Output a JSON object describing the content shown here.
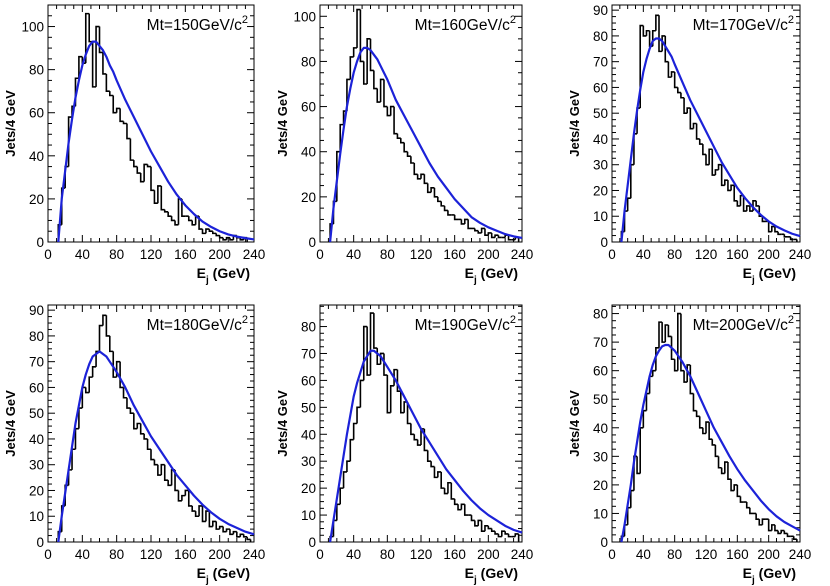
{
  "chart_data": [
    {
      "type": "bar",
      "title": "Mt=150GeV/c",
      "title_sup": "2",
      "xlabel": "E",
      "xlabel_sub": "j",
      "xlabel_unit": " (GeV)",
      "ylabel": "Jets/4 GeV",
      "xlim": [
        0,
        240
      ],
      "ylim": [
        0,
        110
      ],
      "xticks": [
        "0",
        "40",
        "80",
        "120",
        "160",
        "200",
        "240"
      ],
      "yticks": [
        "0",
        "20",
        "40",
        "60",
        "80",
        "100"
      ],
      "hist_x": [
        12,
        16,
        20,
        24,
        28,
        32,
        36,
        40,
        44,
        48,
        52,
        56,
        60,
        64,
        68,
        72,
        76,
        80,
        84,
        88,
        92,
        96,
        100,
        104,
        108,
        112,
        116,
        120,
        124,
        128,
        132,
        136,
        140,
        144,
        148,
        152,
        156,
        160,
        164,
        168,
        172,
        176,
        180,
        184,
        188,
        192,
        196,
        200,
        204,
        208,
        212,
        216,
        220,
        224,
        228
      ],
      "hist_y": [
        8,
        25,
        35,
        58,
        63,
        76,
        86,
        83,
        106,
        93,
        72,
        100,
        88,
        78,
        70,
        68,
        60,
        62,
        56,
        55,
        48,
        38,
        35,
        32,
        28,
        36,
        35,
        24,
        18,
        26,
        15,
        14,
        12,
        10,
        8,
        20,
        12,
        12,
        10,
        8,
        12,
        6,
        4,
        6,
        5,
        4,
        3,
        2,
        1,
        2,
        1,
        3,
        2,
        1,
        2
      ],
      "fit_x": [
        12,
        16,
        20,
        24,
        28,
        32,
        36,
        40,
        44,
        48,
        52,
        56,
        60,
        64,
        68,
        72,
        76,
        80,
        90,
        100,
        110,
        120,
        130,
        140,
        150,
        160,
        170,
        180,
        190,
        200,
        210,
        220,
        230,
        240
      ],
      "fit_y": [
        0,
        20,
        33,
        46,
        57,
        67,
        75,
        82,
        87,
        91,
        93,
        93,
        91,
        89,
        86,
        82,
        79,
        75,
        66,
        58,
        50,
        42,
        35,
        28,
        22,
        17,
        13,
        9.5,
        7,
        5,
        3.5,
        2.5,
        1.8,
        1.2
      ]
    },
    {
      "type": "bar",
      "title": "Mt=160GeV/c",
      "title_sup": "2",
      "xlabel": "E",
      "xlabel_sub": "j",
      "xlabel_unit": " (GeV)",
      "ylabel": "Jets/4 GeV",
      "xlim": [
        0,
        240
      ],
      "ylim": [
        0,
        105
      ],
      "xticks": [
        "0",
        "40",
        "80",
        "120",
        "160",
        "200",
        "240"
      ],
      "yticks": [
        "0",
        "20",
        "40",
        "60",
        "80",
        "100"
      ],
      "hist_x": [
        12,
        16,
        20,
        24,
        28,
        32,
        36,
        40,
        44,
        48,
        52,
        56,
        60,
        64,
        68,
        72,
        76,
        80,
        84,
        88,
        92,
        96,
        100,
        104,
        108,
        112,
        116,
        120,
        124,
        128,
        132,
        136,
        140,
        144,
        148,
        152,
        156,
        160,
        164,
        168,
        172,
        176,
        180,
        184,
        188,
        192,
        196,
        200,
        204,
        208,
        212,
        216,
        220,
        224,
        228,
        232
      ],
      "hist_y": [
        8,
        18,
        40,
        52,
        58,
        72,
        82,
        86,
        103,
        80,
        70,
        90,
        76,
        68,
        62,
        72,
        60,
        56,
        60,
        48,
        46,
        44,
        40,
        38,
        35,
        30,
        28,
        30,
        26,
        22,
        24,
        20,
        18,
        16,
        14,
        12,
        12,
        10,
        10,
        8,
        10,
        6,
        6,
        5,
        4,
        6,
        3,
        4,
        2,
        3,
        2,
        2,
        3,
        1,
        1,
        2
      ],
      "fit_x": [
        12,
        16,
        20,
        24,
        28,
        32,
        36,
        40,
        44,
        48,
        52,
        56,
        60,
        64,
        68,
        72,
        76,
        80,
        90,
        100,
        110,
        120,
        130,
        140,
        150,
        160,
        170,
        180,
        190,
        200,
        210,
        220,
        230,
        240
      ],
      "fit_y": [
        0,
        15,
        27,
        39,
        50,
        60,
        68,
        75,
        80,
        84,
        86,
        86,
        85,
        83,
        81,
        78,
        75,
        72,
        63,
        56,
        49,
        42,
        35,
        29,
        24,
        19,
        15,
        11,
        8.5,
        6.5,
        5,
        3.5,
        2.5,
        1.8
      ]
    },
    {
      "type": "bar",
      "title": "Mt=170GeV/c",
      "title_sup": "2",
      "xlabel": "E",
      "xlabel_sub": "j",
      "xlabel_unit": " (GeV)",
      "ylabel": "Jets/4 GeV",
      "xlim": [
        0,
        240
      ],
      "ylim": [
        0,
        92
      ],
      "xticks": [
        "0",
        "40",
        "80",
        "120",
        "160",
        "200",
        "240"
      ],
      "yticks": [
        "0",
        "10",
        "20",
        "30",
        "40",
        "50",
        "60",
        "70",
        "80",
        "90"
      ],
      "hist_x": [
        12,
        16,
        20,
        24,
        28,
        32,
        36,
        40,
        44,
        48,
        52,
        56,
        60,
        64,
        68,
        72,
        76,
        80,
        84,
        88,
        92,
        96,
        100,
        104,
        108,
        112,
        116,
        120,
        124,
        128,
        132,
        136,
        140,
        144,
        148,
        152,
        156,
        160,
        164,
        168,
        172,
        176,
        180,
        184,
        188,
        192,
        196,
        200,
        204,
        208,
        212,
        216,
        220,
        224,
        228,
        232
      ],
      "hist_y": [
        4,
        12,
        17,
        30,
        42,
        52,
        84,
        80,
        82,
        76,
        82,
        88,
        74,
        80,
        70,
        64,
        66,
        60,
        58,
        56,
        50,
        52,
        44,
        46,
        40,
        38,
        34,
        30,
        36,
        26,
        28,
        30,
        22,
        24,
        20,
        22,
        16,
        14,
        18,
        12,
        14,
        12,
        16,
        14,
        10,
        8,
        8,
        4,
        6,
        4,
        3,
        3,
        2,
        2,
        1,
        1
      ],
      "fit_x": [
        12,
        16,
        20,
        24,
        28,
        32,
        36,
        40,
        44,
        48,
        52,
        56,
        60,
        64,
        68,
        72,
        76,
        80,
        90,
        100,
        110,
        120,
        130,
        140,
        150,
        160,
        170,
        180,
        190,
        200,
        210,
        220,
        230,
        240
      ],
      "fit_y": [
        0,
        12,
        22,
        32,
        42,
        51,
        59,
        66,
        71,
        75,
        78,
        79,
        79,
        78,
        76,
        74,
        72,
        69,
        62,
        55,
        49,
        43,
        37,
        31,
        26,
        21,
        17,
        13.5,
        10.5,
        8,
        6,
        4.5,
        3.2,
        2.3
      ]
    },
    {
      "type": "bar",
      "title": "Mt=180GeV/c",
      "title_sup": "2",
      "xlabel": "E",
      "xlabel_sub": "j",
      "xlabel_unit": " (GeV)",
      "ylabel": "Jets/4 GeV",
      "xlim": [
        0,
        240
      ],
      "ylim": [
        0,
        92
      ],
      "xticks": [
        "0",
        "40",
        "80",
        "120",
        "160",
        "200",
        "240"
      ],
      "yticks": [
        "0",
        "10",
        "20",
        "30",
        "40",
        "50",
        "60",
        "70",
        "80",
        "90"
      ],
      "hist_x": [
        12,
        16,
        20,
        24,
        28,
        32,
        36,
        40,
        44,
        48,
        52,
        56,
        60,
        64,
        68,
        72,
        76,
        80,
        84,
        88,
        92,
        96,
        100,
        104,
        108,
        112,
        116,
        120,
        124,
        128,
        132,
        136,
        140,
        144,
        148,
        152,
        156,
        160,
        164,
        168,
        172,
        176,
        180,
        184,
        188,
        192,
        196,
        200,
        204,
        208,
        212,
        216,
        220,
        224,
        228,
        232
      ],
      "hist_y": [
        4,
        14,
        22,
        28,
        36,
        44,
        52,
        60,
        58,
        64,
        68,
        74,
        84,
        88,
        80,
        74,
        64,
        70,
        60,
        56,
        52,
        50,
        44,
        46,
        42,
        40,
        36,
        32,
        30,
        26,
        30,
        24,
        22,
        28,
        20,
        16,
        18,
        20,
        14,
        12,
        10,
        14,
        8,
        12,
        6,
        8,
        5,
        6,
        4,
        5,
        3,
        4,
        2,
        3,
        2,
        1
      ],
      "fit_x": [
        12,
        16,
        20,
        24,
        28,
        32,
        36,
        40,
        44,
        48,
        52,
        56,
        60,
        64,
        68,
        72,
        76,
        80,
        90,
        100,
        110,
        120,
        130,
        140,
        150,
        160,
        170,
        180,
        190,
        200,
        210,
        220,
        230,
        240
      ],
      "fit_y": [
        0,
        10,
        19,
        28,
        37,
        46,
        53,
        60,
        65,
        69,
        72,
        73,
        74,
        73,
        72,
        70,
        68,
        66,
        60,
        53,
        47,
        41,
        36,
        31,
        26,
        22,
        18,
        14.5,
        11.5,
        9,
        7,
        5.5,
        4,
        3
      ]
    },
    {
      "type": "bar",
      "title": "Mt=190GeV/c",
      "title_sup": "2",
      "xlabel": "E",
      "xlabel_sub": "j",
      "xlabel_unit": " (GeV)",
      "ylabel": "Jets/4 GeV",
      "xlim": [
        0,
        240
      ],
      "ylim": [
        0,
        88
      ],
      "xticks": [
        "0",
        "40",
        "80",
        "120",
        "160",
        "200",
        "240"
      ],
      "yticks": [
        "0",
        "10",
        "20",
        "30",
        "40",
        "50",
        "60",
        "70",
        "80"
      ],
      "hist_x": [
        12,
        16,
        20,
        24,
        28,
        32,
        36,
        40,
        44,
        48,
        52,
        56,
        60,
        64,
        68,
        72,
        76,
        80,
        84,
        88,
        92,
        96,
        100,
        104,
        108,
        112,
        116,
        120,
        124,
        128,
        132,
        136,
        140,
        144,
        148,
        152,
        156,
        160,
        164,
        168,
        172,
        176,
        180,
        184,
        188,
        192,
        196,
        200,
        204,
        208,
        212,
        216,
        220,
        224,
        228,
        232
      ],
      "hist_y": [
        2,
        8,
        14,
        20,
        26,
        30,
        38,
        44,
        50,
        60,
        80,
        62,
        85,
        72,
        66,
        70,
        62,
        48,
        58,
        64,
        56,
        48,
        52,
        44,
        40,
        38,
        36,
        42,
        34,
        30,
        28,
        24,
        26,
        20,
        18,
        22,
        16,
        14,
        12,
        14,
        10,
        10,
        8,
        6,
        8,
        4,
        6,
        5,
        4,
        3,
        2,
        4,
        3,
        2,
        2,
        3
      ],
      "fit_x": [
        12,
        16,
        20,
        24,
        28,
        32,
        36,
        40,
        44,
        48,
        52,
        56,
        60,
        64,
        68,
        72,
        76,
        80,
        90,
        100,
        110,
        120,
        130,
        140,
        150,
        160,
        170,
        180,
        190,
        200,
        210,
        220,
        230,
        240
      ],
      "fit_y": [
        0,
        8,
        16,
        24,
        32,
        40,
        47,
        54,
        59,
        63,
        67,
        69,
        71,
        71,
        70,
        69,
        67,
        65,
        60,
        54,
        48,
        42,
        37,
        32,
        27,
        23,
        19,
        15.5,
        12.5,
        10,
        8,
        6,
        4.5,
        3.5
      ]
    },
    {
      "type": "bar",
      "title": "Mt=200GeV/c",
      "title_sup": "2",
      "xlabel": "E",
      "xlabel_sub": "j",
      "xlabel_unit": " (GeV)",
      "ylabel": "Jets/4 GeV",
      "xlim": [
        0,
        240
      ],
      "ylim": [
        0,
        83
      ],
      "xticks": [
        "0",
        "40",
        "80",
        "120",
        "160",
        "200",
        "240"
      ],
      "yticks": [
        "0",
        "10",
        "20",
        "30",
        "40",
        "50",
        "60",
        "70",
        "80"
      ],
      "hist_x": [
        12,
        16,
        20,
        24,
        28,
        32,
        36,
        40,
        44,
        48,
        52,
        56,
        60,
        64,
        68,
        72,
        76,
        80,
        84,
        88,
        92,
        96,
        100,
        104,
        108,
        112,
        116,
        120,
        124,
        128,
        132,
        136,
        140,
        144,
        148,
        152,
        156,
        160,
        164,
        168,
        172,
        176,
        180,
        184,
        188,
        192,
        196,
        200,
        204,
        208,
        212,
        216,
        220,
        224,
        228,
        232
      ],
      "hist_y": [
        2,
        6,
        12,
        18,
        30,
        24,
        40,
        46,
        52,
        58,
        60,
        68,
        77,
        70,
        76,
        72,
        64,
        60,
        80,
        60,
        56,
        62,
        52,
        46,
        44,
        40,
        38,
        42,
        36,
        34,
        30,
        26,
        24,
        28,
        22,
        18,
        20,
        16,
        14,
        14,
        12,
        10,
        10,
        8,
        6,
        8,
        8,
        4,
        6,
        4,
        3,
        4,
        3,
        2,
        2,
        1
      ],
      "fit_x": [
        12,
        16,
        20,
        24,
        28,
        32,
        36,
        40,
        44,
        48,
        52,
        56,
        60,
        64,
        68,
        72,
        76,
        80,
        90,
        100,
        110,
        120,
        130,
        140,
        150,
        160,
        170,
        180,
        190,
        200,
        210,
        220,
        230,
        240
      ],
      "fit_y": [
        0,
        6,
        13,
        20,
        28,
        35,
        42,
        48,
        53,
        58,
        62,
        65,
        67,
        68.5,
        69,
        69,
        68,
        67,
        63,
        58,
        52,
        46,
        40,
        35,
        30,
        25.5,
        21.5,
        18,
        14.5,
        11.5,
        9,
        7,
        5.5,
        4
      ]
    }
  ],
  "colors": {
    "histogram": "#000000",
    "fit": "#1c22d8",
    "frame": "#000000"
  }
}
